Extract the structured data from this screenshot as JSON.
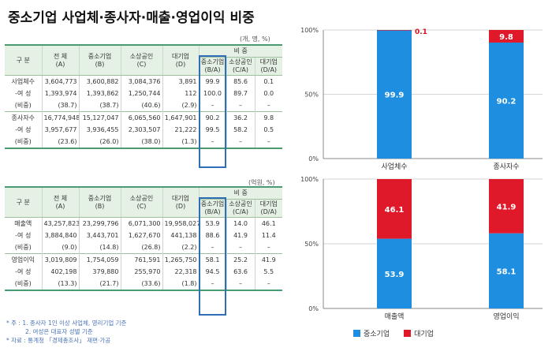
{
  "title": "중소기업 사업체·종사자·매출·영업이익 비중",
  "table1": {
    "unit": "(개, 명, %)",
    "group_header": "비 중",
    "headers": [
      "구 분",
      "전 체\n(A)",
      "중소기업\n(B)",
      "소상공인\n(C)",
      "대기업\n(D)",
      "중소기업\n(B/A)",
      "소상공인\n(C/A)",
      "대기업\n(D/A)"
    ],
    "rows": [
      [
        "사업체수",
        "3,604,773",
        "3,600,882",
        "3,084,376",
        "3,891",
        "99.9",
        "85.6",
        "0.1"
      ],
      [
        "-여 성",
        "1,393,974",
        "1,393,862",
        "1,250,744",
        "112",
        "100.0",
        "89.7",
        "0.0"
      ],
      [
        "(비중)",
        "(38.7)",
        "(38.7)",
        "(40.6)",
        "(2.9)",
        "–",
        "–",
        "–"
      ],
      [
        "종사자수",
        "16,774,948",
        "15,127,047",
        "6,065,560",
        "1,647,901",
        "90.2",
        "36.2",
        "9.8"
      ],
      [
        "-여 성",
        "3,957,677",
        "3,936,455",
        "2,303,507",
        "21,222",
        "99.5",
        "58.2",
        "0.5"
      ],
      [
        "(비중)",
        "(23.6)",
        "(26.0)",
        "(38.0)",
        "(1.3)",
        "–",
        "–",
        "–"
      ]
    ]
  },
  "table2": {
    "unit": "(억원, %)",
    "group_header": "비 중",
    "headers": [
      "구 분",
      "전 체\n(A)",
      "중소기업\n(B)",
      "소상공인\n(C)",
      "대기업\n(D)",
      "중소기업\n(B/A)",
      "소상공인\n(C/A)",
      "대기업\n(D/A)"
    ],
    "rows": [
      [
        "매출액",
        "43,257,823",
        "23,299,796",
        "6,071,300",
        "19,958,027",
        "53.9",
        "14.0",
        "46.1"
      ],
      [
        "-여 성",
        "3,884,840",
        "3,443,701",
        "1,627,670",
        "441,138",
        "88.6",
        "41.9",
        "11.4"
      ],
      [
        "(비중)",
        "(9.0)",
        "(14.8)",
        "(26.8)",
        "(2.2)",
        "–",
        "–",
        "–"
      ],
      [
        "영업이익",
        "3,019,809",
        "1,754,059",
        "761,591",
        "1,265,750",
        "58.1",
        "25.2",
        "41.9"
      ],
      [
        "-여 성",
        "402,198",
        "379,880",
        "255,970",
        "22,318",
        "94.5",
        "63.6",
        "5.5"
      ],
      [
        "(비중)",
        "(13.3)",
        "(21.7)",
        "(33.6)",
        "(1.8)",
        "–",
        "–",
        "–"
      ]
    ]
  },
  "notes": [
    "* 주 : 1. 종사자 1인 이상 사업체, 영리기업 기준",
    "2. 여성은 대표자 성별 기준",
    "* 자료 : 통계청 「경제총조사」 재편·가공"
  ],
  "colors": {
    "sme": "#1e8fe0",
    "large": "#e0192a",
    "table_line": "#4a9a72",
    "highlight": "#2f6fb8"
  },
  "chart_data": [
    {
      "type": "bar",
      "stacked": true,
      "categories": [
        "사업체수",
        "종사자수"
      ],
      "series": [
        {
          "name": "중소기업",
          "values": [
            99.9,
            90.2
          ]
        },
        {
          "name": "대기업",
          "values": [
            0.1,
            9.8
          ]
        }
      ],
      "yticks": [
        "0%",
        "50%",
        "100%"
      ],
      "ylim": [
        0,
        100
      ]
    },
    {
      "type": "bar",
      "stacked": true,
      "categories": [
        "매출액",
        "영업이익"
      ],
      "series": [
        {
          "name": "중소기업",
          "values": [
            53.9,
            58.1
          ]
        },
        {
          "name": "대기업",
          "values": [
            46.1,
            41.9
          ]
        }
      ],
      "yticks": [
        "0%",
        "50%",
        "100%"
      ],
      "ylim": [
        0,
        100
      ]
    }
  ],
  "legend": [
    {
      "name": "중소기업",
      "color": "#1e8fe0"
    },
    {
      "name": "대기업",
      "color": "#e0192a"
    }
  ]
}
